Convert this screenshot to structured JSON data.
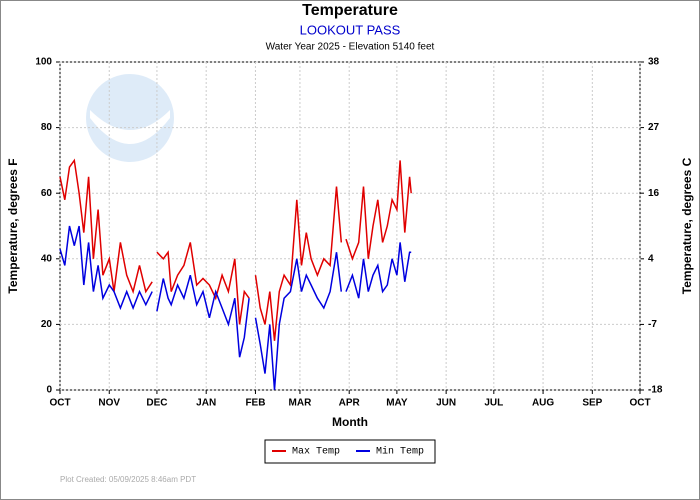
{
  "chart_data": {
    "type": "line",
    "title": "Temperature",
    "subtitle": "LOOKOUT PASS",
    "caption": "Water Year 2025 -  Elevation 5140 feet",
    "xlabel": "Month",
    "ylabel": "Temperature, degrees F",
    "y2label": "Temperature, degrees C",
    "footer": "Plot Created: 05/09/2025 8:46am PDT",
    "x": [
      0,
      3,
      6,
      9,
      12,
      15,
      18,
      21,
      24,
      27,
      31,
      34,
      38,
      42,
      46,
      50,
      54,
      58,
      59,
      61,
      65,
      68,
      70,
      74,
      78,
      82,
      86,
      90,
      94,
      98,
      102,
      106,
      110,
      113,
      116,
      119,
      121,
      123,
      126,
      129,
      132,
      135,
      138,
      141,
      145,
      149,
      152,
      155,
      158,
      162,
      166,
      170,
      174,
      177,
      178,
      180,
      184,
      188,
      191,
      194,
      197,
      200,
      203,
      206,
      209,
      212,
      214,
      217,
      220,
      221
    ],
    "series": [
      {
        "name": "Max Temp",
        "color": "#e00000",
        "values": [
          65,
          58,
          68,
          70,
          60,
          48,
          65,
          40,
          55,
          35,
          40,
          30,
          45,
          35,
          30,
          38,
          30,
          33,
          null,
          42,
          40,
          42,
          30,
          35,
          38,
          45,
          32,
          34,
          32,
          28,
          35,
          30,
          40,
          20,
          30,
          28,
          null,
          35,
          25,
          20,
          30,
          15,
          30,
          35,
          32,
          58,
          38,
          48,
          40,
          35,
          40,
          38,
          62,
          45,
          null,
          46,
          40,
          45,
          62,
          40,
          50,
          58,
          45,
          50,
          58,
          55,
          70,
          48,
          65,
          60
        ]
      },
      {
        "name": "Min Temp",
        "color": "#0000e0",
        "values": [
          43,
          38,
          50,
          44,
          50,
          32,
          45,
          30,
          38,
          28,
          32,
          30,
          25,
          30,
          25,
          30,
          26,
          30,
          null,
          24,
          34,
          28,
          26,
          32,
          28,
          35,
          26,
          30,
          22,
          30,
          25,
          20,
          28,
          10,
          16,
          28,
          null,
          22,
          14,
          5,
          20,
          0,
          20,
          28,
          30,
          40,
          30,
          35,
          32,
          28,
          25,
          30,
          42,
          30,
          null,
          30,
          35,
          28,
          40,
          30,
          35,
          38,
          30,
          32,
          40,
          35,
          45,
          33,
          42,
          42
        ]
      }
    ],
    "xlim": [
      0,
      365
    ],
    "xticks": [
      {
        "value": 0,
        "label": "OCT"
      },
      {
        "value": 31,
        "label": "NOV"
      },
      {
        "value": 61,
        "label": "DEC"
      },
      {
        "value": 92,
        "label": "JAN"
      },
      {
        "value": 123,
        "label": "FEB"
      },
      {
        "value": 151,
        "label": "MAR"
      },
      {
        "value": 182,
        "label": "APR"
      },
      {
        "value": 212,
        "label": "MAY"
      },
      {
        "value": 243,
        "label": "JUN"
      },
      {
        "value": 273,
        "label": "JUL"
      },
      {
        "value": 304,
        "label": "AUG"
      },
      {
        "value": 335,
        "label": "SEP"
      },
      {
        "value": 365,
        "label": "OCT"
      }
    ],
    "ylim": [
      0,
      100
    ],
    "yticks": [
      0,
      20,
      40,
      60,
      80,
      100
    ],
    "y2lim": [
      -17.78,
      37.78
    ],
    "y2ticks": [
      {
        "value": -17.78,
        "label": "-18"
      },
      {
        "value": -6.67,
        "label": "-7"
      },
      {
        "value": 4.44,
        "label": "4"
      },
      {
        "value": 15.56,
        "label": "16"
      },
      {
        "value": 26.67,
        "label": "27"
      },
      {
        "value": 37.78,
        "label": "38"
      }
    ],
    "grid": true
  }
}
